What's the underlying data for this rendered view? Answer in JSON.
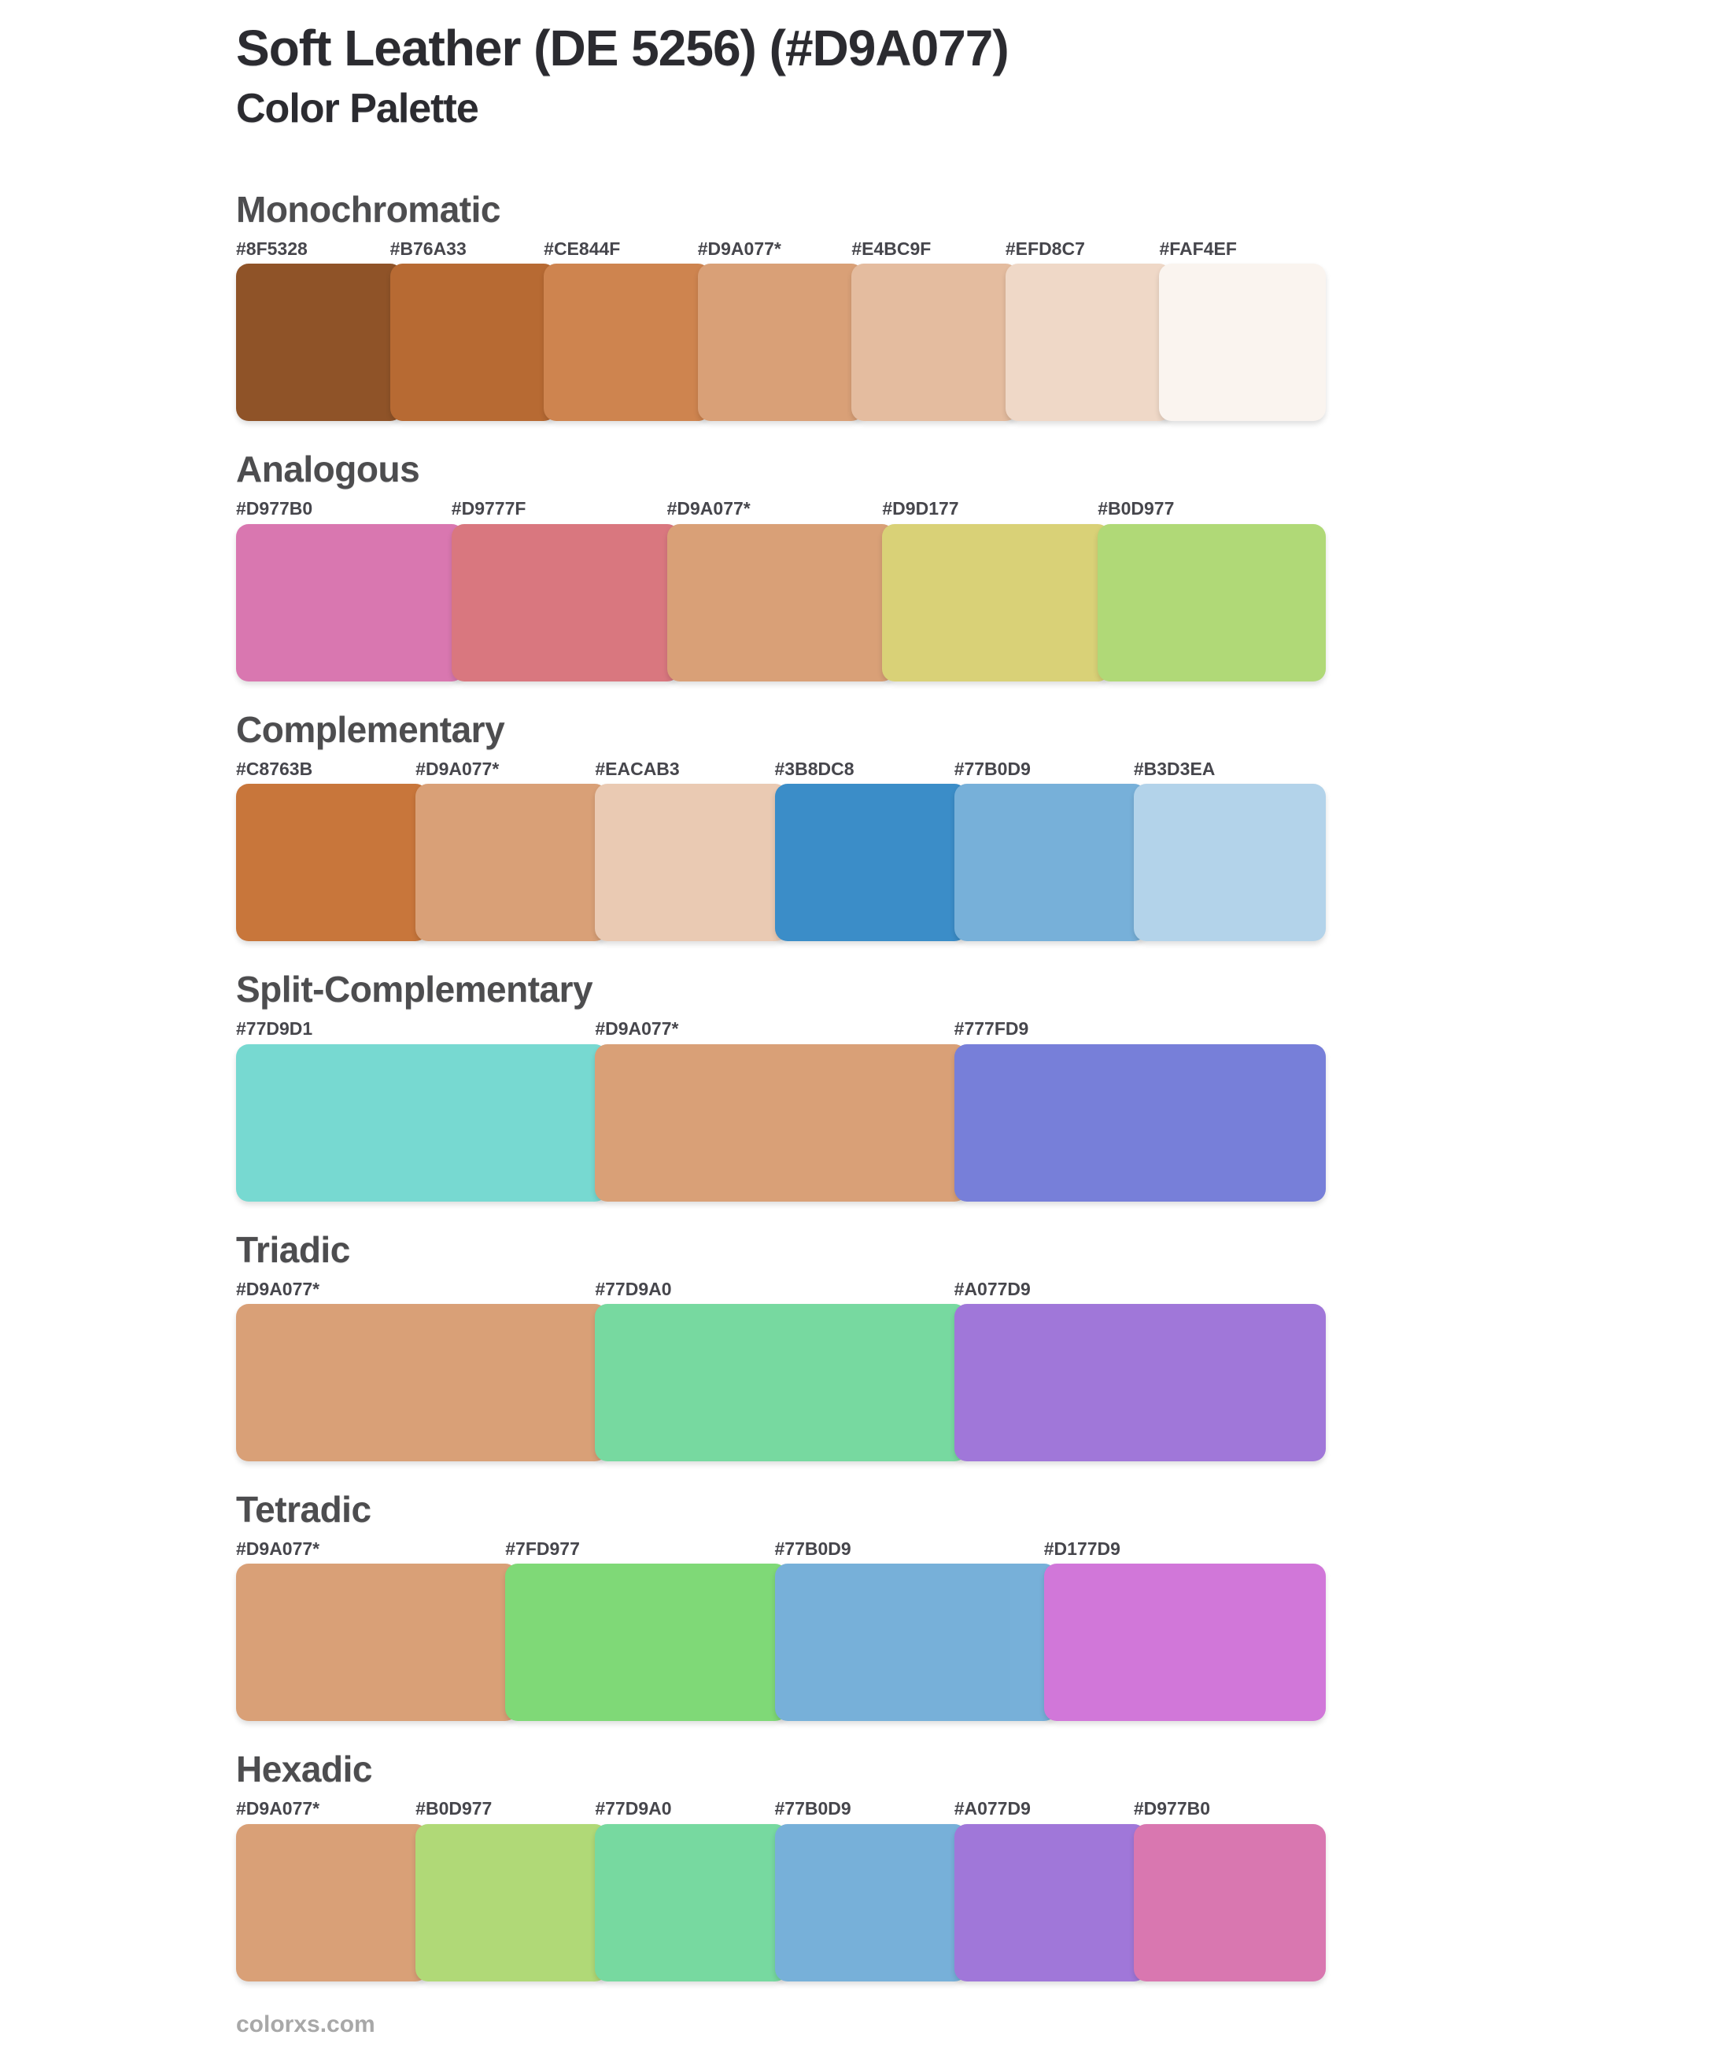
{
  "page": {
    "title": "Soft Leather (DE 5256) (#D9A077)",
    "subtitle": "Color Palette",
    "footer": "colorxs.com"
  },
  "theme": {
    "base_color": "#D9A077",
    "background": "#FFFFFF",
    "title_color": "#2B2B30",
    "heading_color": "#4D4D4F",
    "label_color": "#46464C",
    "footer_color": "#A8A8A8"
  },
  "sections": [
    {
      "name": "Monochromatic",
      "swatches": [
        {
          "hex": "#8F5328",
          "label": "#8F5328"
        },
        {
          "hex": "#B76A33",
          "label": "#B76A33"
        },
        {
          "hex": "#CE844F",
          "label": "#CE844F"
        },
        {
          "hex": "#D9A077",
          "label": "#D9A077*",
          "base": true
        },
        {
          "hex": "#E4BC9F",
          "label": "#E4BC9F"
        },
        {
          "hex": "#EFD8C7",
          "label": "#EFD8C7"
        },
        {
          "hex": "#FAF4EF",
          "label": "#FAF4EF"
        }
      ]
    },
    {
      "name": "Analogous",
      "swatches": [
        {
          "hex": "#D977B0",
          "label": "#D977B0"
        },
        {
          "hex": "#D9777F",
          "label": "#D9777F"
        },
        {
          "hex": "#D9A077",
          "label": "#D9A077*",
          "base": true
        },
        {
          "hex": "#D9D177",
          "label": "#D9D177"
        },
        {
          "hex": "#B0D977",
          "label": "#B0D977"
        }
      ]
    },
    {
      "name": "Complementary",
      "swatches": [
        {
          "hex": "#C8763B",
          "label": "#C8763B"
        },
        {
          "hex": "#D9A077",
          "label": "#D9A077*",
          "base": true
        },
        {
          "hex": "#EACAB3",
          "label": "#EACAB3"
        },
        {
          "hex": "#3B8DC8",
          "label": "#3B8DC8"
        },
        {
          "hex": "#77B0D9",
          "label": "#77B0D9"
        },
        {
          "hex": "#B3D3EA",
          "label": "#B3D3EA"
        }
      ]
    },
    {
      "name": "Split-Complementary",
      "swatches": [
        {
          "hex": "#77D9D1",
          "label": "#77D9D1"
        },
        {
          "hex": "#D9A077",
          "label": "#D9A077*",
          "base": true
        },
        {
          "hex": "#777FD9",
          "label": "#777FD9"
        }
      ]
    },
    {
      "name": "Triadic",
      "swatches": [
        {
          "hex": "#D9A077",
          "label": "#D9A077*",
          "base": true
        },
        {
          "hex": "#77D9A0",
          "label": "#77D9A0"
        },
        {
          "hex": "#A077D9",
          "label": "#A077D9"
        }
      ]
    },
    {
      "name": "Tetradic",
      "swatches": [
        {
          "hex": "#D9A077",
          "label": "#D9A077*",
          "base": true
        },
        {
          "hex": "#7FD977",
          "label": "#7FD977"
        },
        {
          "hex": "#77B0D9",
          "label": "#77B0D9"
        },
        {
          "hex": "#D177D9",
          "label": "#D177D9"
        }
      ]
    },
    {
      "name": "Hexadic",
      "swatches": [
        {
          "hex": "#D9A077",
          "label": "#D9A077*",
          "base": true
        },
        {
          "hex": "#B0D977",
          "label": "#B0D977"
        },
        {
          "hex": "#77D9A0",
          "label": "#77D9A0"
        },
        {
          "hex": "#77B0D9",
          "label": "#77B0D9"
        },
        {
          "hex": "#A077D9",
          "label": "#A077D9"
        },
        {
          "hex": "#D977B0",
          "label": "#D977B0"
        }
      ]
    }
  ]
}
